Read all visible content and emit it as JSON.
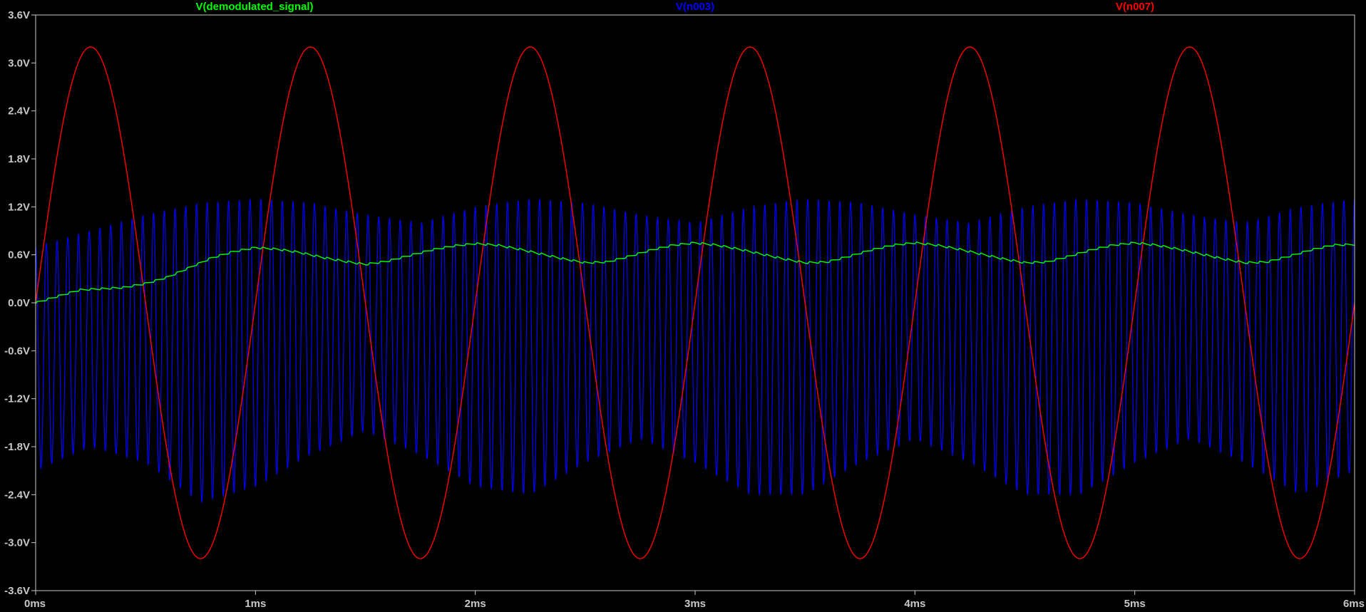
{
  "chart_data": {
    "type": "line",
    "xlim": [
      0,
      6
    ],
    "ylim": [
      -3.6,
      3.6
    ],
    "x_unit": "ms",
    "y_unit": "V",
    "x_ticks": [
      {
        "value": 0,
        "label": "0ms"
      },
      {
        "value": 1,
        "label": "1ms"
      },
      {
        "value": 2,
        "label": "2ms"
      },
      {
        "value": 3,
        "label": "3ms"
      },
      {
        "value": 4,
        "label": "4ms"
      },
      {
        "value": 5,
        "label": "5ms"
      },
      {
        "value": 6,
        "label": "6ms"
      }
    ],
    "y_ticks": [
      {
        "value": 3.6,
        "label": "3.6V"
      },
      {
        "value": 3.0,
        "label": "3.0V"
      },
      {
        "value": 2.4,
        "label": "2.4V"
      },
      {
        "value": 1.8,
        "label": "1.8V"
      },
      {
        "value": 1.2,
        "label": "1.2V"
      },
      {
        "value": 0.6,
        "label": "0.6V"
      },
      {
        "value": 0.0,
        "label": "0.0V"
      },
      {
        "value": -0.6,
        "label": "-0.6V"
      },
      {
        "value": -1.2,
        "label": "-1.2V"
      },
      {
        "value": -1.8,
        "label": "-1.8V"
      },
      {
        "value": -2.4,
        "label": "-2.4V"
      },
      {
        "value": -3.0,
        "label": "-3.0V"
      },
      {
        "value": -3.6,
        "label": "-3.6V"
      }
    ],
    "grid": false,
    "legend_position": "top",
    "background_color": "#000000",
    "axis_color": "#c8c8c8",
    "series": [
      {
        "name": "V(demodulated_signal)",
        "color": "#00ff00",
        "x": [
          0,
          0.2,
          0.4,
          0.5,
          0.6,
          0.7,
          0.8,
          0.9,
          1.0,
          1.1,
          1.2,
          1.3,
          1.4,
          1.5,
          1.6,
          1.7,
          1.8,
          1.9,
          2.0,
          2.1,
          2.2,
          2.3,
          2.4,
          2.5,
          2.6,
          2.7,
          2.8,
          2.9,
          3.0,
          3.1,
          3.2,
          3.3,
          3.4,
          3.5,
          3.6,
          3.7,
          3.8,
          3.9,
          4.0,
          4.1,
          4.2,
          4.3,
          4.4,
          4.5,
          4.6,
          4.7,
          4.8,
          4.9,
          5.0,
          5.1,
          5.2,
          5.3,
          5.4,
          5.5,
          5.6,
          5.7,
          5.8,
          5.9,
          6.0
        ],
        "y": [
          0.0,
          0.16,
          0.19,
          0.24,
          0.32,
          0.44,
          0.56,
          0.64,
          0.69,
          0.67,
          0.63,
          0.57,
          0.52,
          0.48,
          0.52,
          0.59,
          0.66,
          0.71,
          0.74,
          0.72,
          0.67,
          0.61,
          0.55,
          0.5,
          0.51,
          0.58,
          0.66,
          0.72,
          0.75,
          0.72,
          0.67,
          0.61,
          0.55,
          0.5,
          0.51,
          0.58,
          0.66,
          0.72,
          0.75,
          0.72,
          0.67,
          0.61,
          0.55,
          0.5,
          0.51,
          0.58,
          0.66,
          0.72,
          0.75,
          0.72,
          0.67,
          0.61,
          0.55,
          0.5,
          0.51,
          0.58,
          0.66,
          0.72,
          0.73
        ]
      },
      {
        "name": "V(n003)",
        "color": "#0000ff",
        "x": [
          0,
          0.25,
          0.5,
          0.75,
          1.0,
          1.25,
          1.5,
          1.75,
          2.0,
          2.25,
          2.5,
          2.75,
          3.0,
          3.25,
          3.5,
          3.75,
          4.0,
          4.25,
          4.5,
          4.75,
          5.0,
          5.25,
          5.5,
          5.75,
          6.0
        ],
        "y_max": [
          0.7,
          0.9,
          1.1,
          1.25,
          1.3,
          1.25,
          1.1,
          1.0,
          1.2,
          1.3,
          1.25,
          1.1,
          1.0,
          1.2,
          1.3,
          1.25,
          1.1,
          1.0,
          1.2,
          1.3,
          1.25,
          1.1,
          1.0,
          1.2,
          1.3
        ],
        "y_min": [
          -2.1,
          -1.8,
          -2.0,
          -2.5,
          -2.3,
          -1.9,
          -1.6,
          -1.9,
          -2.3,
          -2.4,
          -2.0,
          -1.7,
          -2.0,
          -2.4,
          -2.4,
          -2.0,
          -1.7,
          -2.0,
          -2.4,
          -2.4,
          -2.0,
          -1.7,
          -2.0,
          -2.4,
          -2.1
        ],
        "carrier_cycles_per_ms": 20.5
      },
      {
        "name": "V(n007)",
        "color": "#ff0000",
        "amplitude": 3.2,
        "frequency_khz": 1,
        "x": [
          0,
          0.25,
          0.5,
          0.75,
          1.0,
          1.25,
          1.5,
          1.75,
          2.0,
          2.25,
          2.5,
          2.75,
          3.0,
          3.25,
          3.5,
          3.75,
          4.0,
          4.25,
          4.5,
          4.75,
          5.0,
          5.25,
          5.5,
          5.75,
          6.0
        ],
        "y": [
          0,
          3.2,
          0,
          -3.2,
          0,
          3.2,
          0,
          -3.2,
          0,
          3.2,
          0,
          -3.2,
          0,
          3.2,
          0,
          -3.2,
          0,
          3.2,
          0,
          -3.2,
          0,
          3.2,
          0,
          -3.2,
          0
        ]
      }
    ]
  }
}
